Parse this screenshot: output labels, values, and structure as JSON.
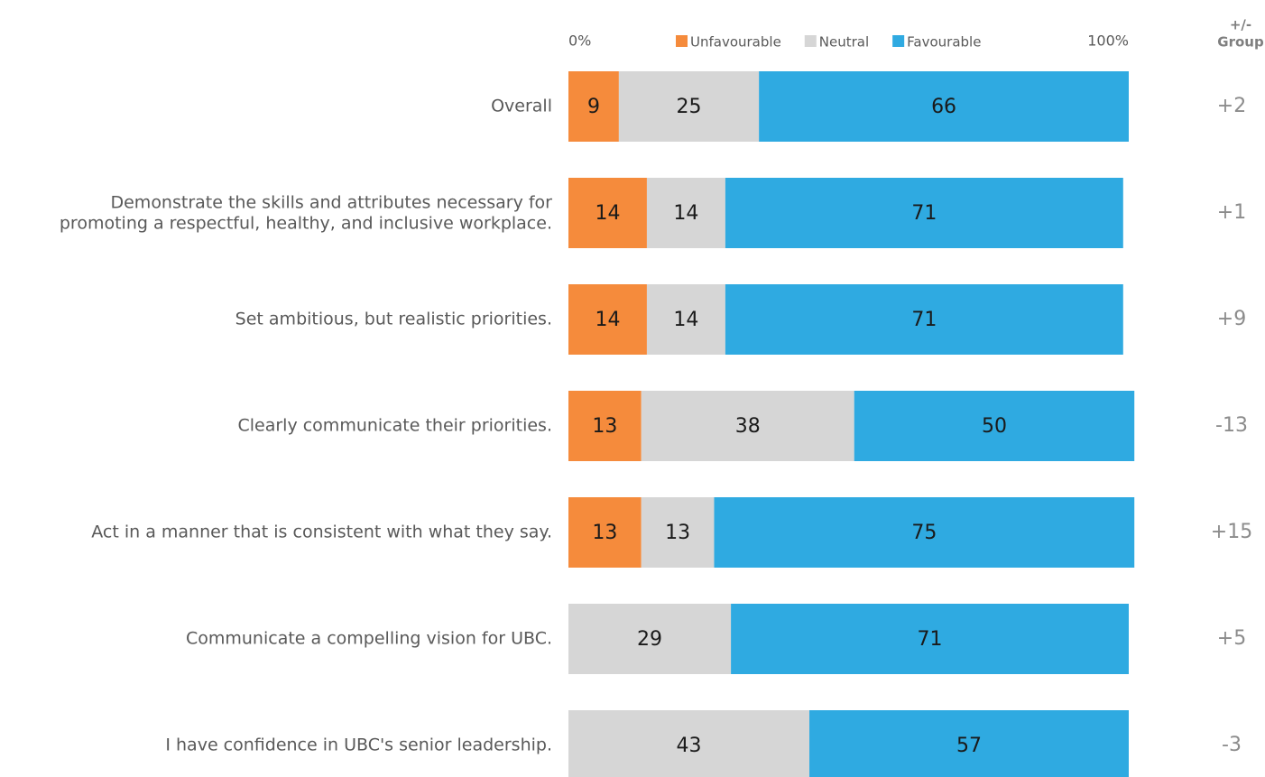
{
  "chart_data": {
    "type": "stacked_barh",
    "categories": [
      "Overall",
      "Demonstrate the skills and attributes necessary for\npromoting a respectful, healthy, and inclusive workplace.",
      "Set ambitious, but realistic priorities.",
      "Clearly communicate their priorities.",
      "Act in a manner that is consistent with what they say.",
      "Communicate a compelling vision for UBC.",
      "I have confidence in UBC's senior leadership."
    ],
    "series": [
      {
        "name": "Unfavourable",
        "color": "#f58b3c",
        "values": [
          9,
          14,
          14,
          13,
          13,
          null,
          null
        ]
      },
      {
        "name": "Neutral",
        "color": "#d6d6d6",
        "values": [
          25,
          14,
          14,
          38,
          13,
          29,
          43
        ]
      },
      {
        "name": "Favourable",
        "color": "#2faae1",
        "values": [
          66,
          71,
          71,
          50,
          75,
          71,
          57
        ]
      }
    ],
    "xlim": [
      0,
      100
    ],
    "xticks": [
      {
        "value": 0,
        "label": "0%"
      },
      {
        "value": 100,
        "label": "100%"
      }
    ],
    "grid": false,
    "legend": "top",
    "diff_header": [
      "+/-",
      "Group"
    ],
    "diff_values": [
      2,
      1,
      9,
      -13,
      15,
      5,
      -3
    ],
    "diff_value_labels": [
      "+2",
      "+1",
      "+9",
      "-13",
      "+15",
      "+5",
      "-3"
    ]
  }
}
